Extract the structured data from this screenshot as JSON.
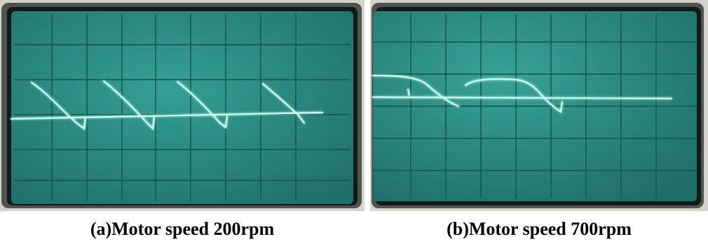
{
  "figure": {
    "panel_a": {
      "caption": "(a)Motor speed 200rpm"
    },
    "panel_b": {
      "caption": "(b)Motor speed 700rpm"
    }
  },
  "colors": {
    "screen": "#2f8f87",
    "screen_dark": "#1f6f69",
    "grid": "#17514d",
    "trace": "#c8fff0",
    "trace_glow": "#7fffd8",
    "bezel_outer": "#5a5f57",
    "bezel_inner": "#151d1b",
    "mount": "#d4d2cd"
  }
}
